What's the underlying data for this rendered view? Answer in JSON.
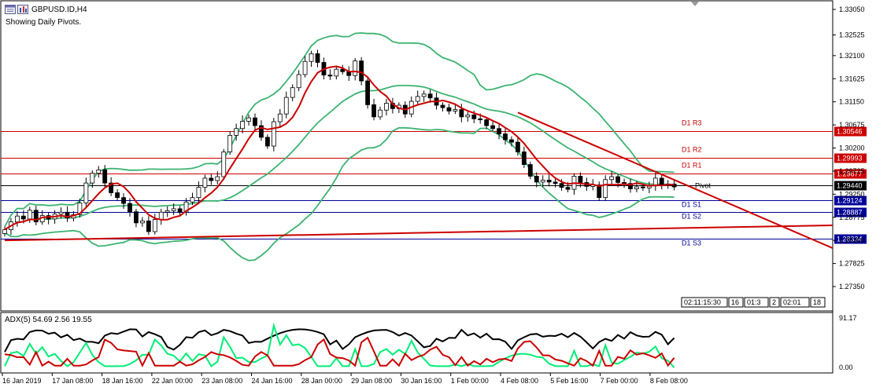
{
  "window": {
    "symbol_title": "GBPUSD.ID,H4",
    "indicator_note": "Showing Daily Pivots."
  },
  "price_axis": {
    "ticks": [
      "1.33050",
      "1.32525",
      "1.32100",
      "1.31625",
      "1.31150",
      "1.30675",
      "1.30200",
      "1.29725",
      "1.29250",
      "1.28775",
      "1.28300",
      "1.27825",
      "1.27350"
    ]
  },
  "pivot_lines": [
    {
      "label": "D1 R3",
      "price": "1.30546",
      "kind": "resistance",
      "color": "#cc0000"
    },
    {
      "label": "D1 R2",
      "price": "1.29993",
      "kind": "resistance",
      "color": "#cc0000"
    },
    {
      "label": "D1 R1",
      "price": "1.29677",
      "kind": "resistance",
      "color": "#cc0000"
    },
    {
      "label": "Pivot",
      "price": "1.29440",
      "kind": "pivot",
      "color": "#000000"
    },
    {
      "label": "D1 S1",
      "price": "1.29124",
      "kind": "support",
      "color": "#000099"
    },
    {
      "label": "D1 S2",
      "price": "1.28887",
      "kind": "support",
      "color": "#000099"
    },
    {
      "label": "D1 S3",
      "price": "1.28334",
      "kind": "support",
      "color": "#000099"
    }
  ],
  "time_axis": {
    "labels": [
      "16 Jan 2019",
      "17 Jan 08:00",
      "18 Jan 16:00",
      "22 Jan 00:00",
      "23 Jan 08:00",
      "24 Jan 16:00",
      "28 Jan 00:00",
      "29 Jan 08:00",
      "30 Jan 16:00",
      "1 Feb 00:00",
      "4 Feb 08:00",
      "5 Feb 16:00",
      "7 Feb 00:00",
      "8 Feb 08:00"
    ]
  },
  "time_badges": [
    "02:11:15:30",
    "16",
    "01:3",
    "2",
    "02:01",
    "18"
  ],
  "adx_panel": {
    "title": "ADX(5) 54.69 2.56 19.55",
    "axis_top": "91.17",
    "axis_bottom": "0.00"
  },
  "colors": {
    "grid_border": "#000000",
    "bullish": "#ffffff",
    "bearish": "#000000",
    "bollinger": "#3cb371",
    "ma": "#cc0000",
    "trendline": "#cc0000",
    "adx_main": "#000000",
    "adx_plus": "#00ee76",
    "adx_minus": "#cc0000"
  },
  "chart_data": {
    "type": "candlestick",
    "symbol": "GBPUSD.ID",
    "timeframe": "H4",
    "close_series": [
      1.2852,
      1.2868,
      1.288,
      1.2874,
      1.2892,
      1.2868,
      1.2881,
      1.2874,
      1.2884,
      1.2888,
      1.2876,
      1.2883,
      1.2907,
      1.2948,
      1.2968,
      1.2975,
      1.2948,
      1.2928,
      1.2918,
      1.2906,
      1.2889,
      1.2866,
      1.287,
      1.2848,
      1.2873,
      1.2888,
      1.2891,
      1.2895,
      1.2888,
      1.2909,
      1.2918,
      1.2939,
      1.2958,
      1.2953,
      1.2961,
      1.3012,
      1.3046,
      1.306,
      1.3075,
      1.3082,
      1.3066,
      1.3042,
      1.3024,
      1.3074,
      1.309,
      1.3124,
      1.3144,
      1.3171,
      1.3198,
      1.3214,
      1.3196,
      1.317,
      1.3168,
      1.3182,
      1.3177,
      1.3169,
      1.3199,
      1.3158,
      1.3109,
      1.3084,
      1.3098,
      1.3112,
      1.3101,
      1.3108,
      1.309,
      1.3116,
      1.3126,
      1.3131,
      1.3123,
      1.3108,
      1.3103,
      1.3096,
      1.3099,
      1.3084,
      1.3088,
      1.308,
      1.3078,
      1.3066,
      1.306,
      1.3049,
      1.3037,
      1.3032,
      1.3012,
      1.2986,
      1.2962,
      1.295,
      1.2954,
      1.295,
      1.2947,
      1.2939,
      1.2935,
      1.2962,
      1.2949,
      1.2941,
      1.2944,
      1.2918,
      1.2955,
      1.2961,
      1.2949,
      1.2947,
      1.2936,
      1.294,
      1.2938,
      1.2942,
      1.2958,
      1.2944,
      1.2946,
      1.294
    ],
    "series": [
      {
        "name": "ADX(5)",
        "last": 54.69
      },
      {
        "name": "+DI",
        "last": 2.56
      },
      {
        "name": "-DI",
        "last": 19.55
      }
    ],
    "pivots": {
      "R3": 1.30546,
      "R2": 1.29993,
      "R1": 1.29677,
      "P": 1.2944,
      "S1": 1.29124,
      "S2": 1.28887,
      "S3": 1.28334
    },
    "ylim": [
      1.2735,
      1.3305
    ]
  }
}
